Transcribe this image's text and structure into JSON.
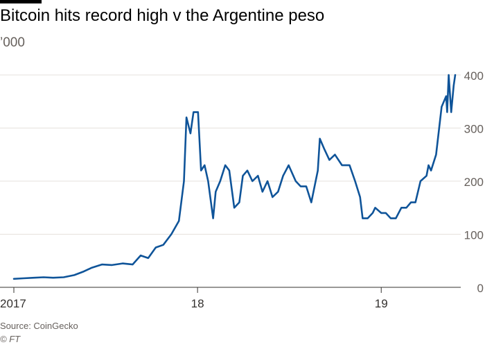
{
  "header": {
    "title": "Bitcoin hits record high v the Argentine peso",
    "subtitle": "’000"
  },
  "footer": {
    "source": "Source: CoinGecko",
    "credit": "© FT"
  },
  "colors": {
    "line": "#0f5499",
    "grid": "#e6e1dc",
    "axis": "#33302e",
    "text": "#66605c"
  },
  "chart_data": {
    "type": "line",
    "title": "Bitcoin hits record high v the Argentine peso",
    "ylabel": "’000",
    "xlabel": "",
    "ylim": [
      0,
      400
    ],
    "yticks": [
      0,
      100,
      200,
      300,
      400
    ],
    "xlim": [
      "2017-01-01",
      "2019-05-28"
    ],
    "xticks": [
      {
        "date": "2017-01-01",
        "label": "2017"
      },
      {
        "date": "2018-01-01",
        "label": "18"
      },
      {
        "date": "2019-01-01",
        "label": "19"
      }
    ],
    "grid": true,
    "series": [
      {
        "x": [
          "2017-01-01",
          "2017-01-20",
          "2017-02-10",
          "2017-03-01",
          "2017-03-20",
          "2017-04-10",
          "2017-05-01",
          "2017-05-20",
          "2017-06-05",
          "2017-06-25",
          "2017-07-15",
          "2017-08-05",
          "2017-08-25",
          "2017-09-10",
          "2017-09-25",
          "2017-10-10",
          "2017-10-25",
          "2017-11-10",
          "2017-11-25",
          "2017-12-05",
          "2017-12-10",
          "2017-12-18",
          "2017-12-24",
          "2018-01-02",
          "2018-01-08",
          "2018-01-15",
          "2018-01-22",
          "2018-02-01",
          "2018-02-06",
          "2018-02-15",
          "2018-02-25",
          "2018-03-05",
          "2018-03-15",
          "2018-03-25",
          "2018-04-01",
          "2018-04-10",
          "2018-04-20",
          "2018-05-01",
          "2018-05-10",
          "2018-05-20",
          "2018-05-30",
          "2018-06-10",
          "2018-06-20",
          "2018-07-01",
          "2018-07-15",
          "2018-07-25",
          "2018-08-05",
          "2018-08-15",
          "2018-08-28",
          "2018-09-01",
          "2018-09-10",
          "2018-09-20",
          "2018-10-01",
          "2018-10-15",
          "2018-10-30",
          "2018-11-10",
          "2018-11-20",
          "2018-11-25",
          "2018-12-05",
          "2018-12-15",
          "2018-12-20",
          "2019-01-01",
          "2019-01-10",
          "2019-01-20",
          "2019-01-30",
          "2019-02-10",
          "2019-02-20",
          "2019-03-01",
          "2019-03-10",
          "2019-03-20",
          "2019-04-01",
          "2019-04-05",
          "2019-04-10",
          "2019-04-20",
          "2019-05-01",
          "2019-05-10",
          "2019-05-12",
          "2019-05-15",
          "2019-05-20",
          "2019-05-25",
          "2019-05-28"
        ],
        "values": [
          16,
          17,
          18,
          19,
          18,
          19,
          23,
          30,
          37,
          43,
          42,
          45,
          43,
          60,
          55,
          75,
          80,
          100,
          125,
          200,
          320,
          290,
          330,
          330,
          220,
          230,
          200,
          130,
          180,
          200,
          230,
          220,
          150,
          160,
          210,
          220,
          200,
          210,
          180,
          200,
          170,
          180,
          210,
          230,
          200,
          190,
          190,
          160,
          220,
          280,
          260,
          240,
          250,
          230,
          230,
          200,
          170,
          130,
          130,
          140,
          150,
          140,
          140,
          130,
          130,
          150,
          150,
          160,
          160,
          200,
          210,
          230,
          220,
          250,
          340,
          360,
          330,
          400,
          330,
          380,
          400
        ]
      }
    ]
  }
}
